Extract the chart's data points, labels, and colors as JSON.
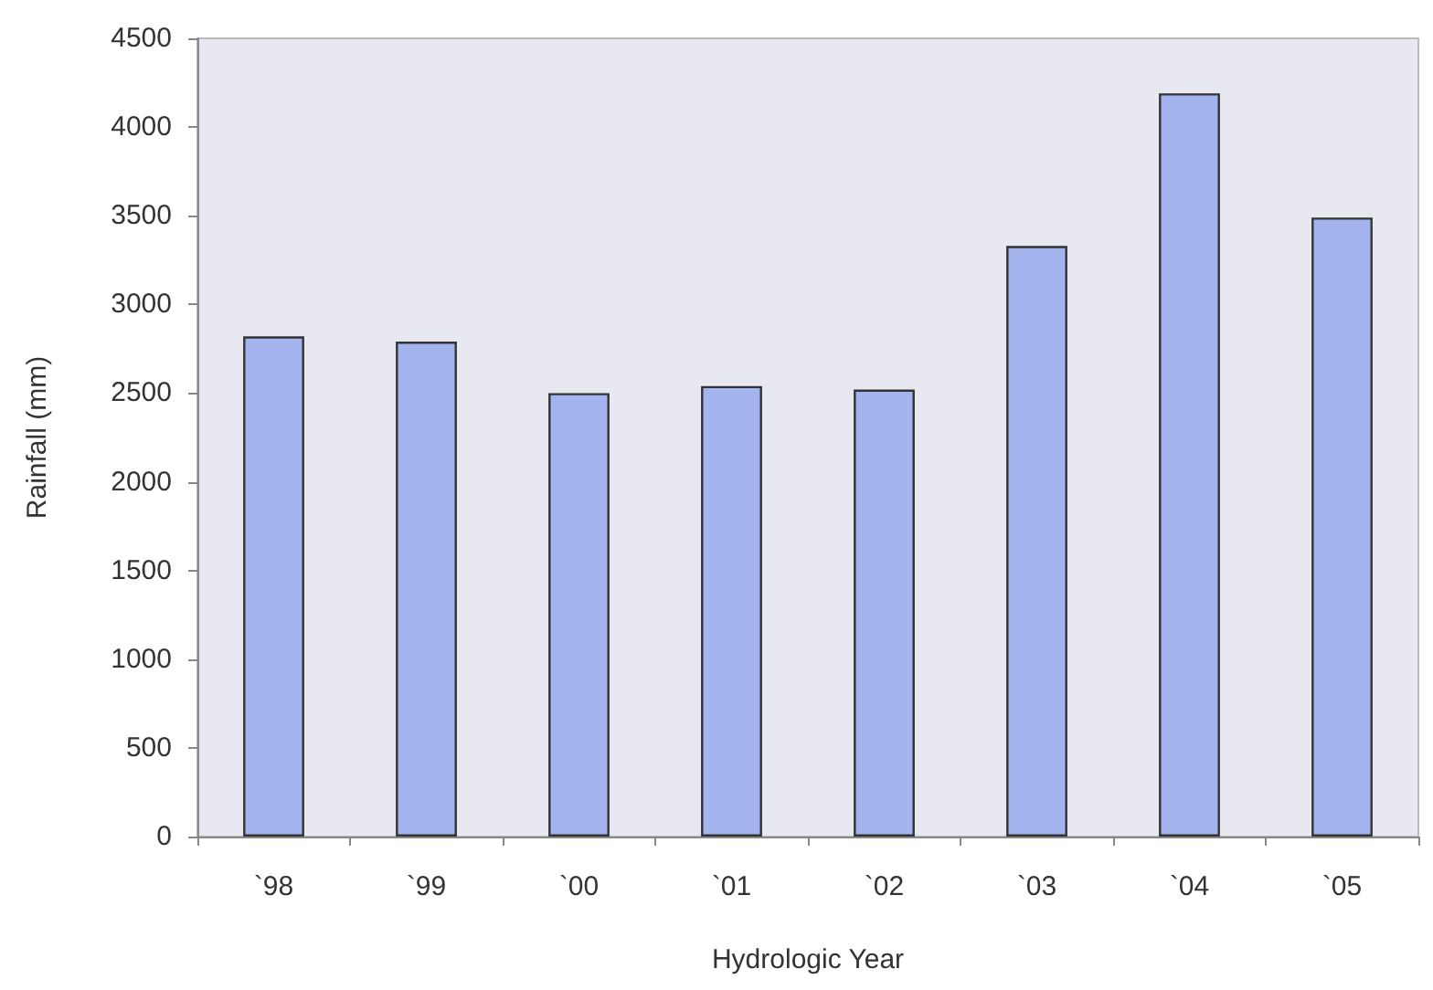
{
  "chart_data": {
    "type": "bar",
    "xlabel": "Hydrologic Year",
    "ylabel": "Rainfall (mm)",
    "categories": [
      "`98",
      "`99",
      "`00",
      "`01",
      "`02",
      "`03",
      "`04",
      "`05"
    ],
    "values": [
      2820,
      2790,
      2500,
      2540,
      2520,
      3330,
      4190,
      3490
    ],
    "color": "#a4b4ee",
    "ylim": [
      0,
      4500
    ],
    "yticks": [
      0,
      500,
      1000,
      1500,
      2000,
      2500,
      3000,
      3500,
      4000,
      4500
    ],
    "grid": false
  }
}
